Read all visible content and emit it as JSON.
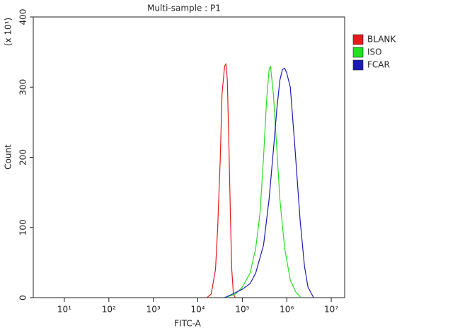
{
  "chart_data": {
    "type": "line",
    "title": "Multi-sample : P1",
    "x_label": "FITC-A",
    "y_label": "Count",
    "y_unit": "(x 10¹)",
    "log_x": true,
    "legend": "right",
    "xlim": [
      2,
      20000000
    ],
    "ylim": [
      0,
      400
    ],
    "xticks": [
      {
        "value": 10,
        "label": "10¹"
      },
      {
        "value": 100,
        "label": "10²"
      },
      {
        "value": 1000,
        "label": "10³"
      },
      {
        "value": 10000,
        "label": "10⁴"
      },
      {
        "value": 100000,
        "label": "10⁵"
      },
      {
        "value": 1000000,
        "label": "10⁶"
      },
      {
        "value": 10000000,
        "label": "10⁷"
      }
    ],
    "yticks": [
      0,
      100,
      200,
      300,
      400
    ],
    "series": [
      {
        "name": "BLANK",
        "color": "#e8191c",
        "x": [
          16000,
          20000,
          25000,
          28000,
          32000,
          35000,
          40000,
          43000,
          46000,
          50000,
          54000,
          58000,
          63000,
          70000
        ],
        "values": [
          0,
          5,
          40,
          100,
          200,
          290,
          330,
          333,
          310,
          220,
          120,
          40,
          5,
          0
        ]
      },
      {
        "name": "ISO",
        "color": "#22e01f",
        "x": [
          40000,
          70000,
          100000,
          150000,
          200000,
          250000,
          300000,
          350000,
          400000,
          430000,
          500000,
          600000,
          700000,
          900000,
          1200000,
          1600000,
          2100000
        ],
        "values": [
          0,
          5,
          15,
          35,
          70,
          120,
          200,
          280,
          325,
          330,
          290,
          210,
          140,
          70,
          25,
          8,
          0
        ]
      },
      {
        "name": "FCAR",
        "color": "#1a1ab8",
        "x": [
          40000,
          60000,
          100000,
          150000,
          200000,
          300000,
          400000,
          500000,
          600000,
          700000,
          800000,
          900000,
          1000000,
          1200000,
          1500000,
          2000000,
          2500000,
          3000000,
          4000000
        ],
        "values": [
          0,
          5,
          12,
          20,
          35,
          75,
          140,
          210,
          270,
          310,
          325,
          327,
          320,
          300,
          220,
          110,
          45,
          15,
          0
        ]
      }
    ]
  }
}
